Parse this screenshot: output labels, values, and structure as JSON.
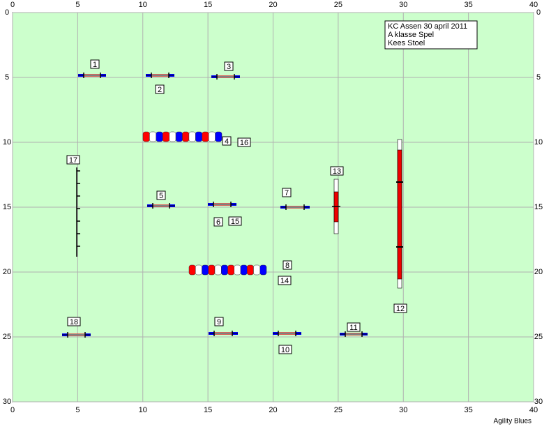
{
  "course": {
    "xlim": [
      0,
      40
    ],
    "ylim": [
      0,
      30
    ],
    "xticks": [
      0,
      5,
      10,
      15,
      20,
      25,
      30,
      35,
      40
    ],
    "yticks": [
      0,
      5,
      10,
      15,
      20,
      25,
      30
    ],
    "info": [
      "KC Assen 30 april 2011",
      "A klasse Spel",
      "Kees Stoel"
    ],
    "labels": [
      1,
      2,
      3,
      4,
      5,
      6,
      7,
      8,
      9,
      10,
      11,
      12,
      13,
      14,
      15,
      16,
      17,
      18
    ],
    "footer": "Agility Blues"
  }
}
